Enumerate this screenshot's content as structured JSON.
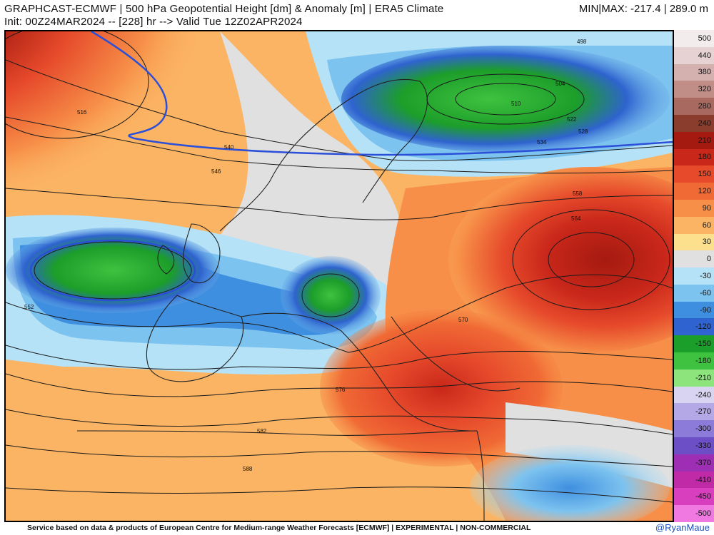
{
  "header": {
    "title": "GRAPHCAST-ECMWF | 500 hPa Geopotential Height [dm] & Anomaly [m] | ERA5 Climate",
    "init_line": "Init: 00Z24MAR2024 -- [228] hr --> Valid Tue 12Z02APR2024",
    "minmax": "MIN|MAX: -217.4 | 289.0 m"
  },
  "footer": {
    "disclaimer": "Service based on data & products of European Centre for Medium-range Weather Forecasts [ECMWF] | EXPERIMENTAL | NON-COMMERCIAL",
    "credit": "@RyanMaue"
  },
  "colorbar": {
    "ticks": [
      {
        "label": "500",
        "color": "#f3ecec"
      },
      {
        "label": "440",
        "color": "#e6d2d2"
      },
      {
        "label": "380",
        "color": "#d4b0ae"
      },
      {
        "label": "320",
        "color": "#c08d87"
      },
      {
        "label": "280",
        "color": "#a86a60"
      },
      {
        "label": "240",
        "color": "#8a3d2c"
      },
      {
        "label": "210",
        "color": "#a51a10"
      },
      {
        "label": "180",
        "color": "#c9271a"
      },
      {
        "label": "150",
        "color": "#e64a2b"
      },
      {
        "label": "120",
        "color": "#f06a35"
      },
      {
        "label": "90",
        "color": "#f78f48"
      },
      {
        "label": "60",
        "color": "#fbb463"
      },
      {
        "label": "30",
        "color": "#fde08e"
      },
      {
        "label": "0",
        "color": "#e0e0e0"
      },
      {
        "label": "-30",
        "color": "#b5e2f7"
      },
      {
        "label": "-60",
        "color": "#7dc3ef"
      },
      {
        "label": "-90",
        "color": "#3f8fe0"
      },
      {
        "label": "-120",
        "color": "#2f63cf"
      },
      {
        "label": "-150",
        "color": "#1c9e2a"
      },
      {
        "label": "-180",
        "color": "#3fc23f"
      },
      {
        "label": "-210",
        "color": "#8de47c"
      },
      {
        "label": "-240",
        "color": "#d8d4f1"
      },
      {
        "label": "-270",
        "color": "#b4a9e6"
      },
      {
        "label": "-300",
        "color": "#8c7bd8"
      },
      {
        "label": "-330",
        "color": "#6c4fc6"
      },
      {
        "label": "-370",
        "color": "#9e2fb5"
      },
      {
        "label": "-410",
        "color": "#c02aa7"
      },
      {
        "label": "-450",
        "color": "#d83fbe"
      },
      {
        "label": "-500",
        "color": "#ef79e0"
      }
    ]
  },
  "map": {
    "contour_labels": [
      "498",
      "504",
      "510",
      "516",
      "522",
      "528",
      "534",
      "540",
      "546",
      "552",
      "558",
      "564",
      "570",
      "576",
      "582",
      "588"
    ]
  }
}
